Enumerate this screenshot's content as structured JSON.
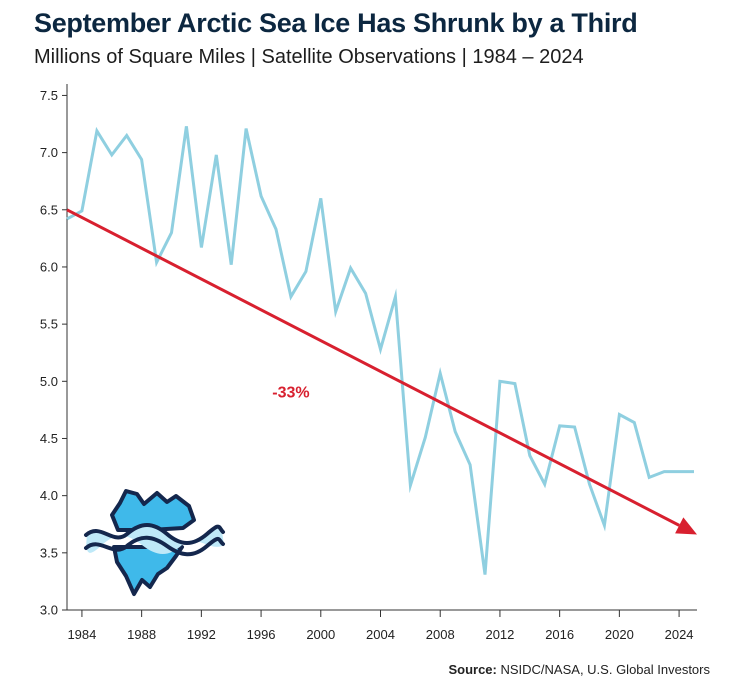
{
  "chart_data": {
    "type": "line",
    "title": "September Arctic Sea Ice Has Shrunk by a Third",
    "subtitle": "Millions of Square Miles | Satellite Observations | 1984 – 2024",
    "source_label": "Source:",
    "source_text": "NSIDC/NASA, U.S. Global Investors",
    "xlim": [
      1983,
      2025.2
    ],
    "ylim": [
      3.0,
      7.6
    ],
    "x_ticks": [
      1984,
      1988,
      1992,
      1996,
      2000,
      2004,
      2008,
      2012,
      2016,
      2020,
      2024
    ],
    "y_ticks": [
      3.0,
      3.5,
      4.0,
      4.5,
      5.0,
      5.5,
      6.0,
      6.5,
      7.0,
      7.5
    ],
    "y_tick_labels": [
      "3.0",
      "3.5",
      "4.0",
      "4.5",
      "5.0",
      "5.5",
      "6.0",
      "6.5",
      "7.0",
      "7.5"
    ],
    "series": [
      {
        "color": "#8fcfe0",
        "x": [
          1983,
          1984,
          1985,
          1986,
          1987,
          1988,
          1989,
          1990,
          1991,
          1992,
          1993,
          1994,
          1995,
          1996,
          1997,
          1998,
          1999,
          2000,
          2001,
          2002,
          2003,
          2004,
          2005,
          2006,
          2007,
          2008,
          2009,
          2010,
          2011,
          2012,
          2013,
          2014,
          2015,
          2016,
          2017,
          2018,
          2019,
          2020,
          2021,
          2022,
          2023,
          2024,
          2025
        ],
        "y": [
          6.42,
          6.49,
          7.19,
          6.98,
          7.15,
          6.94,
          6.04,
          6.3,
          7.23,
          6.17,
          6.98,
          6.02,
          7.21,
          6.62,
          6.33,
          5.74,
          5.96,
          6.6,
          5.61,
          5.99,
          5.77,
          5.28,
          5.74,
          4.09,
          4.51,
          5.07,
          4.56,
          4.27,
          3.31,
          5.0,
          4.98,
          4.35,
          4.1,
          4.61,
          4.6,
          4.1,
          3.74,
          4.71,
          4.64,
          4.16,
          4.21,
          4.21,
          4.21
        ]
      }
    ],
    "trend": {
      "color": "#d8202f",
      "x": [
        1983,
        2025.2
      ],
      "y": [
        6.5,
        3.66
      ],
      "label": "-33%",
      "label_x": 1998.0,
      "label_y": 4.91
    },
    "grid": false
  },
  "iceberg_icon": "iceberg-icon"
}
